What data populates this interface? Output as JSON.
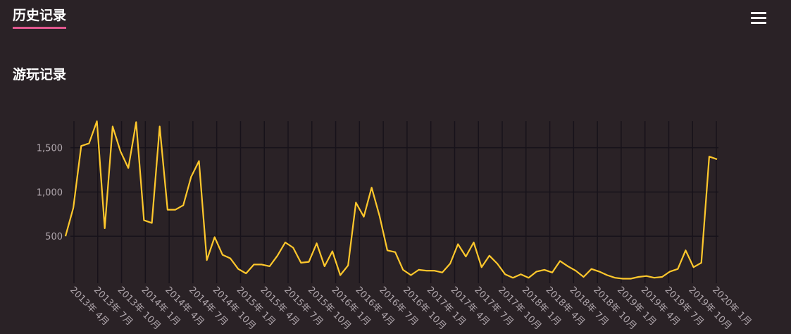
{
  "header": {
    "tab_title": "历史记录",
    "menu_icon": "hamburger-menu-icon"
  },
  "section": {
    "title": "游玩记录"
  },
  "colors": {
    "background": "#2a2226",
    "line": "#ffc82c",
    "grid": "#17121a",
    "accent_underline": "#e2588f",
    "tick_text": "#b0a7ad"
  },
  "chart_data": {
    "type": "line",
    "title": "",
    "xlabel": "",
    "ylabel": "",
    "ylim": [
      0,
      1800
    ],
    "y_ticks": [
      500,
      1000,
      1500
    ],
    "y_tick_labels": [
      "500",
      "1,000",
      "1,500"
    ],
    "grid": true,
    "x_tick_labels": [
      "2013年 4月",
      "2013年 7月",
      "2013年 10月",
      "2014年 1月",
      "2014年 4月",
      "2014年 7月",
      "2014年 10月",
      "2015年 1月",
      "2015年 4月",
      "2015年 7月",
      "2015年 10月",
      "2016年 1月",
      "2016年 4月",
      "2016年 7月",
      "2016年 10月",
      "2017年 1月",
      "2017年 4月",
      "2017年 7月",
      "2017年 10月",
      "2018年 1月",
      "2018年 4月",
      "2018年 7月",
      "2018年 10月",
      "2019年 1月",
      "2019年 4月",
      "2019年 7月",
      "2019年 10月",
      "2020年 1月"
    ],
    "series": [
      {
        "values": [
          500,
          820,
          1520,
          1550,
          1800,
          590,
          1740,
          1460,
          1270,
          1790,
          680,
          650,
          1740,
          800,
          800,
          850,
          1170,
          1350,
          230,
          490,
          290,
          250,
          130,
          80,
          180,
          180,
          160,
          280,
          430,
          370,
          200,
          210,
          420,
          160,
          330,
          60,
          170,
          880,
          720,
          1050,
          730,
          340,
          320,
          120,
          60,
          120,
          110,
          110,
          90,
          190,
          410,
          270,
          430,
          150,
          280,
          190,
          70,
          30,
          70,
          30,
          100,
          120,
          90,
          220,
          160,
          110,
          40,
          130,
          100,
          60,
          30,
          20,
          20,
          40,
          50,
          30,
          40,
          100,
          130,
          340,
          150,
          200,
          1400,
          1370
        ]
      }
    ]
  }
}
